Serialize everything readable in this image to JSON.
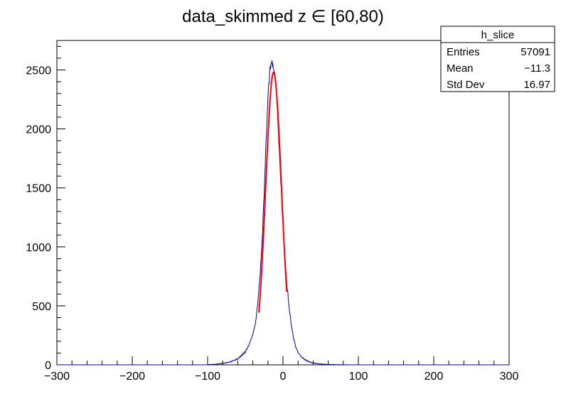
{
  "chart_data": {
    "type": "histogram",
    "title": "data_skimmed z  ∈ [60,80)",
    "xlabel": "",
    "ylabel": "",
    "xlim": [
      -300,
      300
    ],
    "ylim": [
      0,
      2750
    ],
    "x_ticks": [
      -300,
      -200,
      -100,
      0,
      100,
      200,
      300
    ],
    "x_tick_labels": [
      "−300",
      "−200",
      "−100",
      "0",
      "100",
      "200",
      "300"
    ],
    "y_ticks": [
      0,
      500,
      1000,
      1500,
      2000,
      2500
    ],
    "y_tick_labels": [
      "0",
      "500",
      "1000",
      "1500",
      "2000",
      "2500"
    ],
    "grid": false,
    "stats_box": {
      "name": "h_slice",
      "rows": [
        {
          "label": "Entries",
          "value": "57091"
        },
        {
          "label": "Mean",
          "value": "−11.3"
        },
        {
          "label": "Std Dev",
          "value": "16.97"
        }
      ]
    },
    "series": [
      {
        "kind": "histogram",
        "color": "#000099",
        "x": [
          -100,
          -90,
          -80,
          -70,
          -60,
          -55,
          -50,
          -45,
          -40,
          -37,
          -35,
          -33,
          -31,
          -29,
          -27,
          -25,
          -23,
          -21,
          -19,
          -17,
          -16,
          -15,
          -14,
          -13,
          -12,
          -11,
          -10,
          -9,
          -8,
          -7,
          -6,
          -5,
          -3,
          -1,
          1,
          3,
          5,
          7,
          9,
          11,
          13,
          15,
          17,
          20,
          25,
          30,
          35,
          40,
          50,
          60,
          70,
          80,
          90,
          100
        ],
        "values": [
          2,
          5,
          12,
          25,
          50,
          80,
          110,
          170,
          260,
          340,
          430,
          560,
          720,
          900,
          1150,
          1450,
          1800,
          2120,
          2380,
          2520,
          2560,
          2600,
          2570,
          2540,
          2490,
          2450,
          2380,
          2300,
          2200,
          2080,
          1950,
          1820,
          1560,
          1300,
          1070,
          870,
          700,
          560,
          440,
          340,
          260,
          200,
          150,
          105,
          65,
          40,
          25,
          15,
          7,
          3,
          2,
          1,
          0,
          0
        ]
      },
      {
        "kind": "fit",
        "color": "#ff0000",
        "fit_range": [
          -32,
          5
        ],
        "mean": -12.5,
        "sigma": 10.5,
        "amplitude": 2480
      }
    ]
  }
}
